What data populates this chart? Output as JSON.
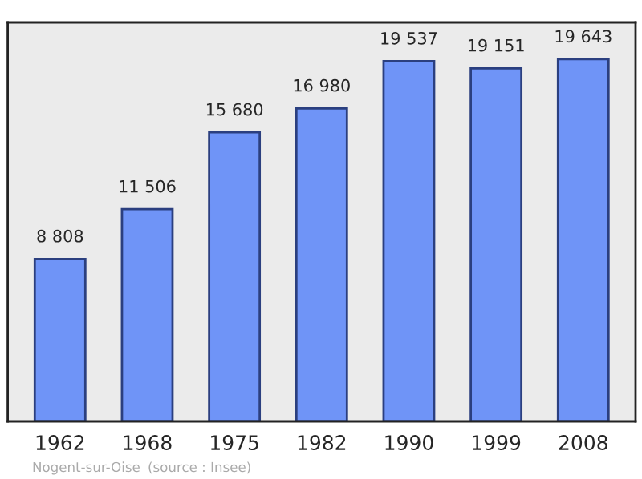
{
  "chart_data": {
    "type": "bar",
    "categories": [
      "1962",
      "1968",
      "1975",
      "1982",
      "1990",
      "1999",
      "2008"
    ],
    "values": [
      8808,
      11506,
      15680,
      16980,
      19537,
      19151,
      19643
    ],
    "value_labels": [
      "8 808",
      "11 506",
      "15 680",
      "16 980",
      "19 537",
      "19 151",
      "19 643"
    ],
    "color": "#6f94f7",
    "ylim": [
      0,
      21640
    ],
    "tick_labels": "x",
    "grid": false,
    "annotations": [
      "Nogent-sur-Oise",
      "(source : Insee)"
    ]
  }
}
